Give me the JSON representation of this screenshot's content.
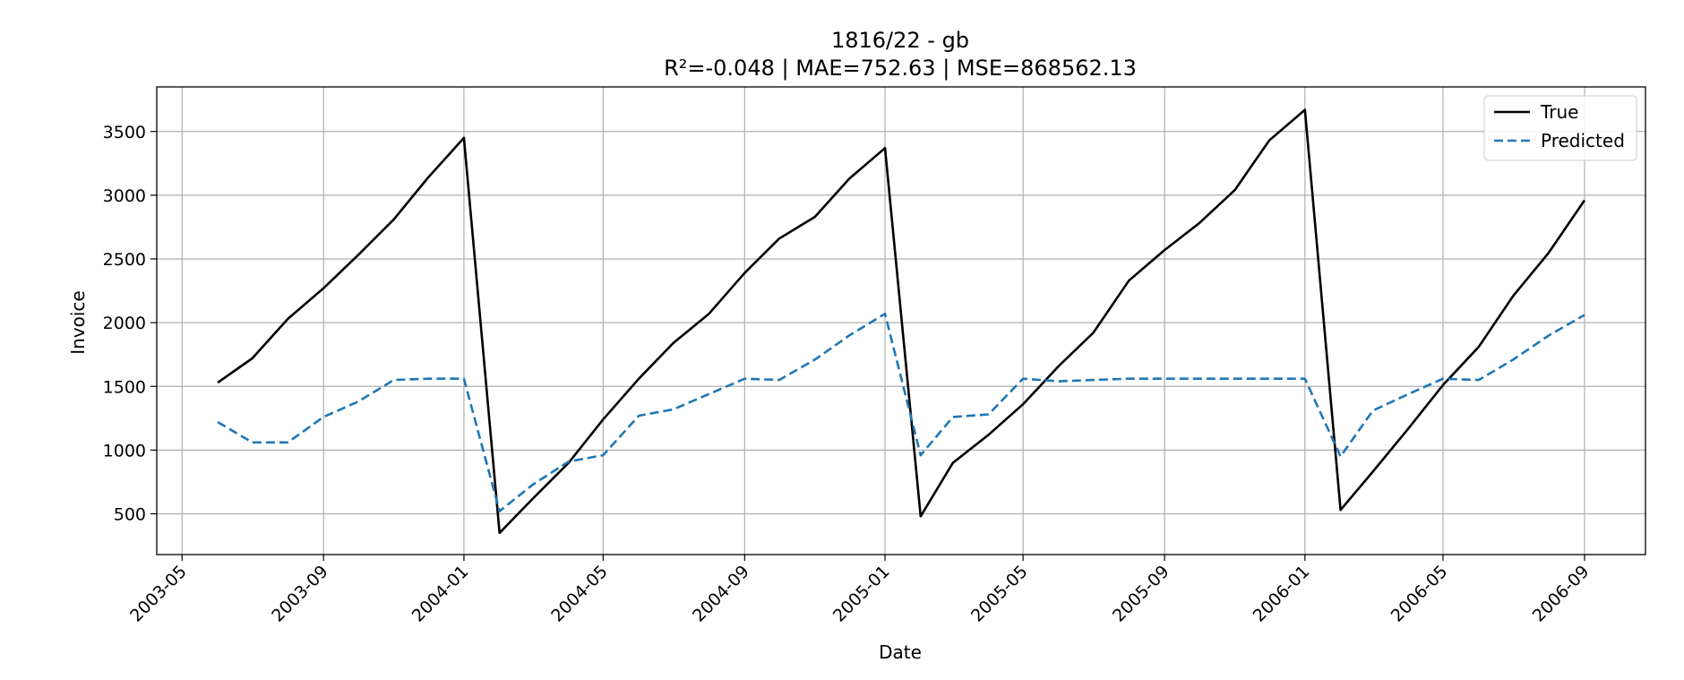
{
  "chart_data": {
    "type": "line",
    "title": "1816/22 - gb",
    "subtitle": "R²=-0.048 | MAE=752.63 | MSE=868562.13",
    "xlabel": "Date",
    "ylabel": "Invoice",
    "ylim": [
      180,
      3850
    ],
    "xlim": [
      "2003-04-09",
      "2006-10-24"
    ],
    "x_ticks": [
      "2003-05",
      "2003-09",
      "2004-01",
      "2004-05",
      "2004-09",
      "2005-01",
      "2005-05",
      "2005-09",
      "2006-01",
      "2006-05",
      "2006-09"
    ],
    "y_ticks": [
      500,
      1000,
      1500,
      2000,
      2500,
      3000,
      3500
    ],
    "grid": true,
    "legend_position": "top-right",
    "x": [
      "2003-06",
      "2003-07",
      "2003-08",
      "2003-09",
      "2003-10",
      "2003-11",
      "2003-12",
      "2004-01",
      "2004-02",
      "2004-03",
      "2004-04",
      "2004-05",
      "2004-06",
      "2004-07",
      "2004-08",
      "2004-09",
      "2004-10",
      "2004-11",
      "2004-12",
      "2005-01",
      "2005-02",
      "2005-03",
      "2005-04",
      "2005-05",
      "2005-06",
      "2005-07",
      "2005-08",
      "2005-09",
      "2005-10",
      "2005-11",
      "2005-12",
      "2006-01",
      "2006-02",
      "2006-03",
      "2006-04",
      "2006-05",
      "2006-06",
      "2006-07",
      "2006-08",
      "2006-09"
    ],
    "series": [
      {
        "name": "True",
        "color": "#000000",
        "style": "solid",
        "values": [
          1530,
          1720,
          2030,
          2270,
          2530,
          2810,
          3140,
          3450,
          350,
          620,
          900,
          1240,
          1560,
          1840,
          2070,
          2390,
          2660,
          2830,
          3130,
          3370,
          480,
          900,
          1120,
          1360,
          1660,
          1920,
          2330,
          2570,
          2780,
          3040,
          3430,
          3670,
          530,
          830,
          1170,
          1510,
          1810,
          2210,
          2550,
          2960
        ]
      },
      {
        "name": "Predicted",
        "color": "#1f77b4",
        "style": "dashed",
        "values": [
          1220,
          1060,
          1060,
          1260,
          1380,
          1550,
          1560,
          1560,
          520,
          730,
          910,
          960,
          1270,
          1320,
          1440,
          1560,
          1550,
          1710,
          1900,
          2070,
          960,
          1260,
          1280,
          1560,
          1540,
          1550,
          1560,
          1560,
          1560,
          1560,
          1560,
          1560,
          950,
          1310,
          1440,
          1560,
          1550,
          1710,
          1900,
          2060
        ]
      }
    ]
  }
}
